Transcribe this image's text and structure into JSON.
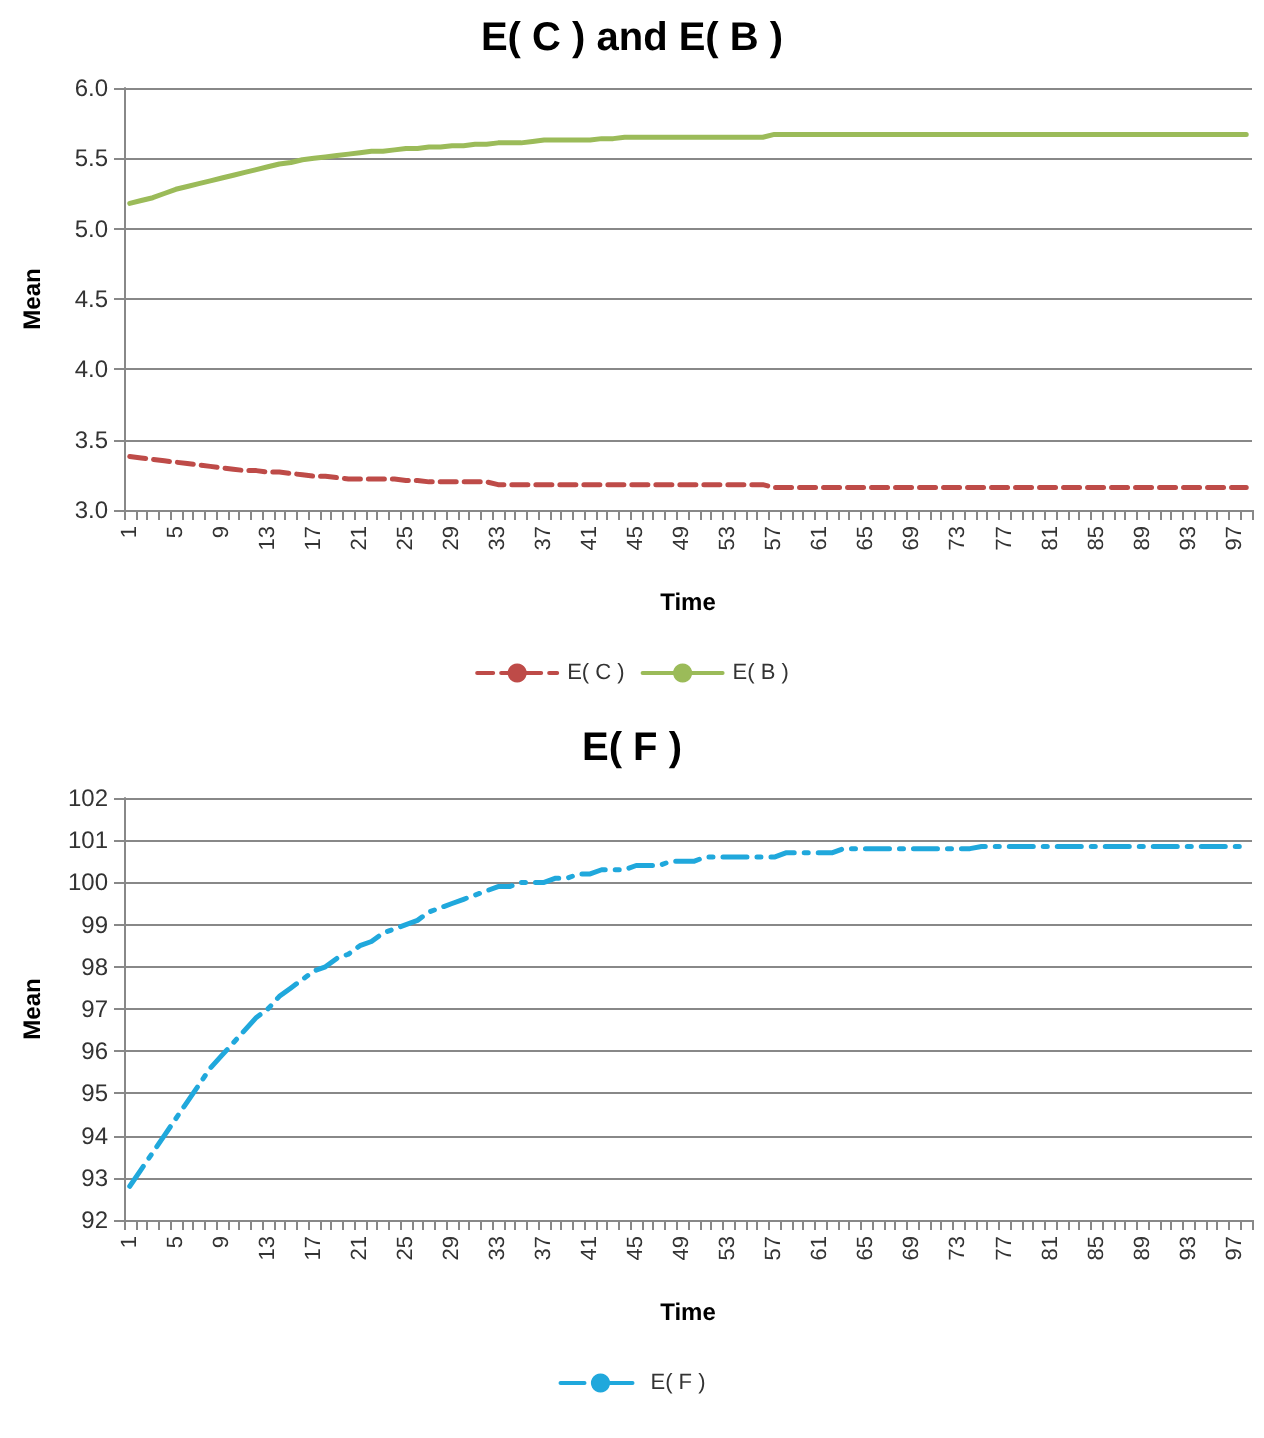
{
  "chart_data": [
    {
      "type": "line",
      "title": "E( C ) and E( B )",
      "xlabel": "Time",
      "ylabel": "Mean",
      "categories": [
        "1",
        null,
        null,
        null,
        "5",
        null,
        null,
        null,
        "9",
        null,
        null,
        null,
        "13",
        null,
        null,
        null,
        "17",
        null,
        null,
        null,
        "21",
        null,
        null,
        null,
        "25",
        null,
        null,
        null,
        "29",
        null,
        null,
        null,
        "33",
        null,
        null,
        null,
        "37",
        null,
        null,
        null,
        "41",
        null,
        null,
        null,
        "45",
        null,
        null,
        null,
        "49",
        null,
        null,
        null,
        "53",
        null,
        null,
        null,
        "57",
        null,
        null,
        null,
        "61",
        null,
        null,
        null,
        "65",
        null,
        null,
        null,
        "69",
        null,
        null,
        null,
        "73",
        null,
        null,
        null,
        "77",
        null,
        null,
        null,
        "81",
        null,
        null,
        null,
        "85",
        null,
        null,
        null,
        "89",
        null,
        null,
        null,
        "93",
        null,
        null,
        null,
        "97",
        null
      ],
      "series": [
        {
          "name": "E( C )",
          "color": "#be4b48",
          "line_style": "dashed",
          "values": [
            3.38,
            3.37,
            3.36,
            3.35,
            3.34,
            3.33,
            3.32,
            3.31,
            3.3,
            3.29,
            3.28,
            3.28,
            3.27,
            3.27,
            3.26,
            3.25,
            3.24,
            3.24,
            3.23,
            3.22,
            3.22,
            3.22,
            3.22,
            3.22,
            3.21,
            3.21,
            3.2,
            3.2,
            3.2,
            3.2,
            3.2,
            3.2,
            3.18,
            3.18,
            3.18,
            3.18,
            3.18,
            3.18,
            3.18,
            3.18,
            3.18,
            3.18,
            3.18,
            3.18,
            3.18,
            3.18,
            3.18,
            3.18,
            3.18,
            3.18,
            3.18,
            3.18,
            3.18,
            3.18,
            3.18,
            3.18,
            3.16,
            3.16,
            3.16,
            3.16,
            3.16,
            3.16,
            3.16,
            3.16,
            3.16,
            3.16,
            3.16,
            3.16,
            3.16,
            3.16,
            3.16,
            3.16,
            3.16,
            3.16,
            3.16,
            3.16,
            3.16,
            3.16,
            3.16,
            3.16,
            3.16,
            3.16,
            3.16,
            3.16,
            3.16,
            3.16,
            3.16,
            3.16,
            3.16,
            3.16,
            3.16,
            3.16,
            3.16,
            3.16,
            3.16,
            3.16,
            3.16,
            3.16
          ]
        },
        {
          "name": "E( B )",
          "color": "#9bbb59",
          "line_style": "solid",
          "values": [
            5.18,
            5.2,
            5.22,
            5.25,
            5.28,
            5.3,
            5.32,
            5.34,
            5.36,
            5.38,
            5.4,
            5.42,
            5.44,
            5.46,
            5.47,
            5.49,
            5.5,
            5.51,
            5.52,
            5.53,
            5.54,
            5.55,
            5.55,
            5.56,
            5.57,
            5.57,
            5.58,
            5.58,
            5.59,
            5.59,
            5.6,
            5.6,
            5.61,
            5.61,
            5.61,
            5.62,
            5.63,
            5.63,
            5.63,
            5.63,
            5.63,
            5.64,
            5.64,
            5.65,
            5.65,
            5.65,
            5.65,
            5.65,
            5.65,
            5.65,
            5.65,
            5.65,
            5.65,
            5.65,
            5.65,
            5.65,
            5.67,
            5.67,
            5.67,
            5.67,
            5.67,
            5.67,
            5.67,
            5.67,
            5.67,
            5.67,
            5.67,
            5.67,
            5.67,
            5.67,
            5.67,
            5.67,
            5.67,
            5.67,
            5.67,
            5.67,
            5.67,
            5.67,
            5.67,
            5.67,
            5.67,
            5.67,
            5.67,
            5.67,
            5.67,
            5.67,
            5.67,
            5.67,
            5.67,
            5.67,
            5.67,
            5.67,
            5.67,
            5.67,
            5.67,
            5.67,
            5.67,
            5.67
          ]
        }
      ],
      "ylim": [
        3,
        6
      ],
      "yticks": [
        {
          "value": 3,
          "label": "3.0"
        },
        {
          "value": 3.5,
          "label": "3.5"
        },
        {
          "value": 4,
          "label": "4.0"
        },
        {
          "value": 4.5,
          "label": "4.5"
        },
        {
          "value": 5,
          "label": "5.0"
        },
        {
          "value": 5.5,
          "label": "5.5"
        },
        {
          "value": 6,
          "label": "6.0"
        }
      ],
      "grid": "y",
      "legend": "bottom",
      "marker": "none"
    },
    {
      "type": "line",
      "title": "E( F )",
      "xlabel": "Time",
      "ylabel": "Mean",
      "categories": [
        "1",
        null,
        null,
        null,
        "5",
        null,
        null,
        null,
        "9",
        null,
        null,
        null,
        "13",
        null,
        null,
        null,
        "17",
        null,
        null,
        null,
        "21",
        null,
        null,
        null,
        "25",
        null,
        null,
        null,
        "29",
        null,
        null,
        null,
        "33",
        null,
        null,
        null,
        "37",
        null,
        null,
        null,
        "41",
        null,
        null,
        null,
        "45",
        null,
        null,
        null,
        "49",
        null,
        null,
        null,
        "53",
        null,
        null,
        null,
        "57",
        null,
        null,
        null,
        "61",
        null,
        null,
        null,
        "65",
        null,
        null,
        null,
        "69",
        null,
        null,
        null,
        "73",
        null,
        null,
        null,
        "77",
        null,
        null,
        null,
        "81",
        null,
        null,
        null,
        "85",
        null,
        null,
        null,
        "89",
        null,
        null,
        null,
        "93",
        null,
        null,
        null,
        "97",
        null
      ],
      "series": [
        {
          "name": "E( F )",
          "color": "#20a8dc",
          "line_style": "dashdot",
          "values": [
            92.8,
            93.2,
            93.6,
            94.0,
            94.4,
            94.8,
            95.2,
            95.6,
            95.9,
            96.2,
            96.5,
            96.8,
            97.0,
            97.3,
            97.5,
            97.7,
            97.9,
            98.0,
            98.2,
            98.3,
            98.5,
            98.6,
            98.8,
            98.9,
            99.0,
            99.1,
            99.3,
            99.4,
            99.5,
            99.6,
            99.7,
            99.8,
            99.9,
            99.9,
            100.0,
            100.0,
            100.0,
            100.1,
            100.1,
            100.2,
            100.2,
            100.3,
            100.3,
            100.3,
            100.4,
            100.4,
            100.4,
            100.5,
            100.5,
            100.5,
            100.6,
            100.6,
            100.6,
            100.6,
            100.6,
            100.6,
            100.6,
            100.7,
            100.7,
            100.7,
            100.7,
            100.7,
            100.8,
            100.8,
            100.8,
            100.8,
            100.8,
            100.8,
            100.8,
            100.8,
            100.8,
            100.8,
            100.8,
            100.8,
            100.85,
            100.85,
            100.85,
            100.85,
            100.85,
            100.85,
            100.85,
            100.85,
            100.85,
            100.85,
            100.85,
            100.85,
            100.85,
            100.85,
            100.85,
            100.85,
            100.85,
            100.85,
            100.85,
            100.85,
            100.85,
            100.85,
            100.85,
            100.85
          ]
        }
      ],
      "ylim": [
        92,
        102
      ],
      "yticks": [
        92,
        93,
        94,
        95,
        96,
        97,
        98,
        99,
        100,
        101,
        102
      ],
      "grid": "y",
      "legend": "bottom",
      "marker": "none"
    }
  ]
}
